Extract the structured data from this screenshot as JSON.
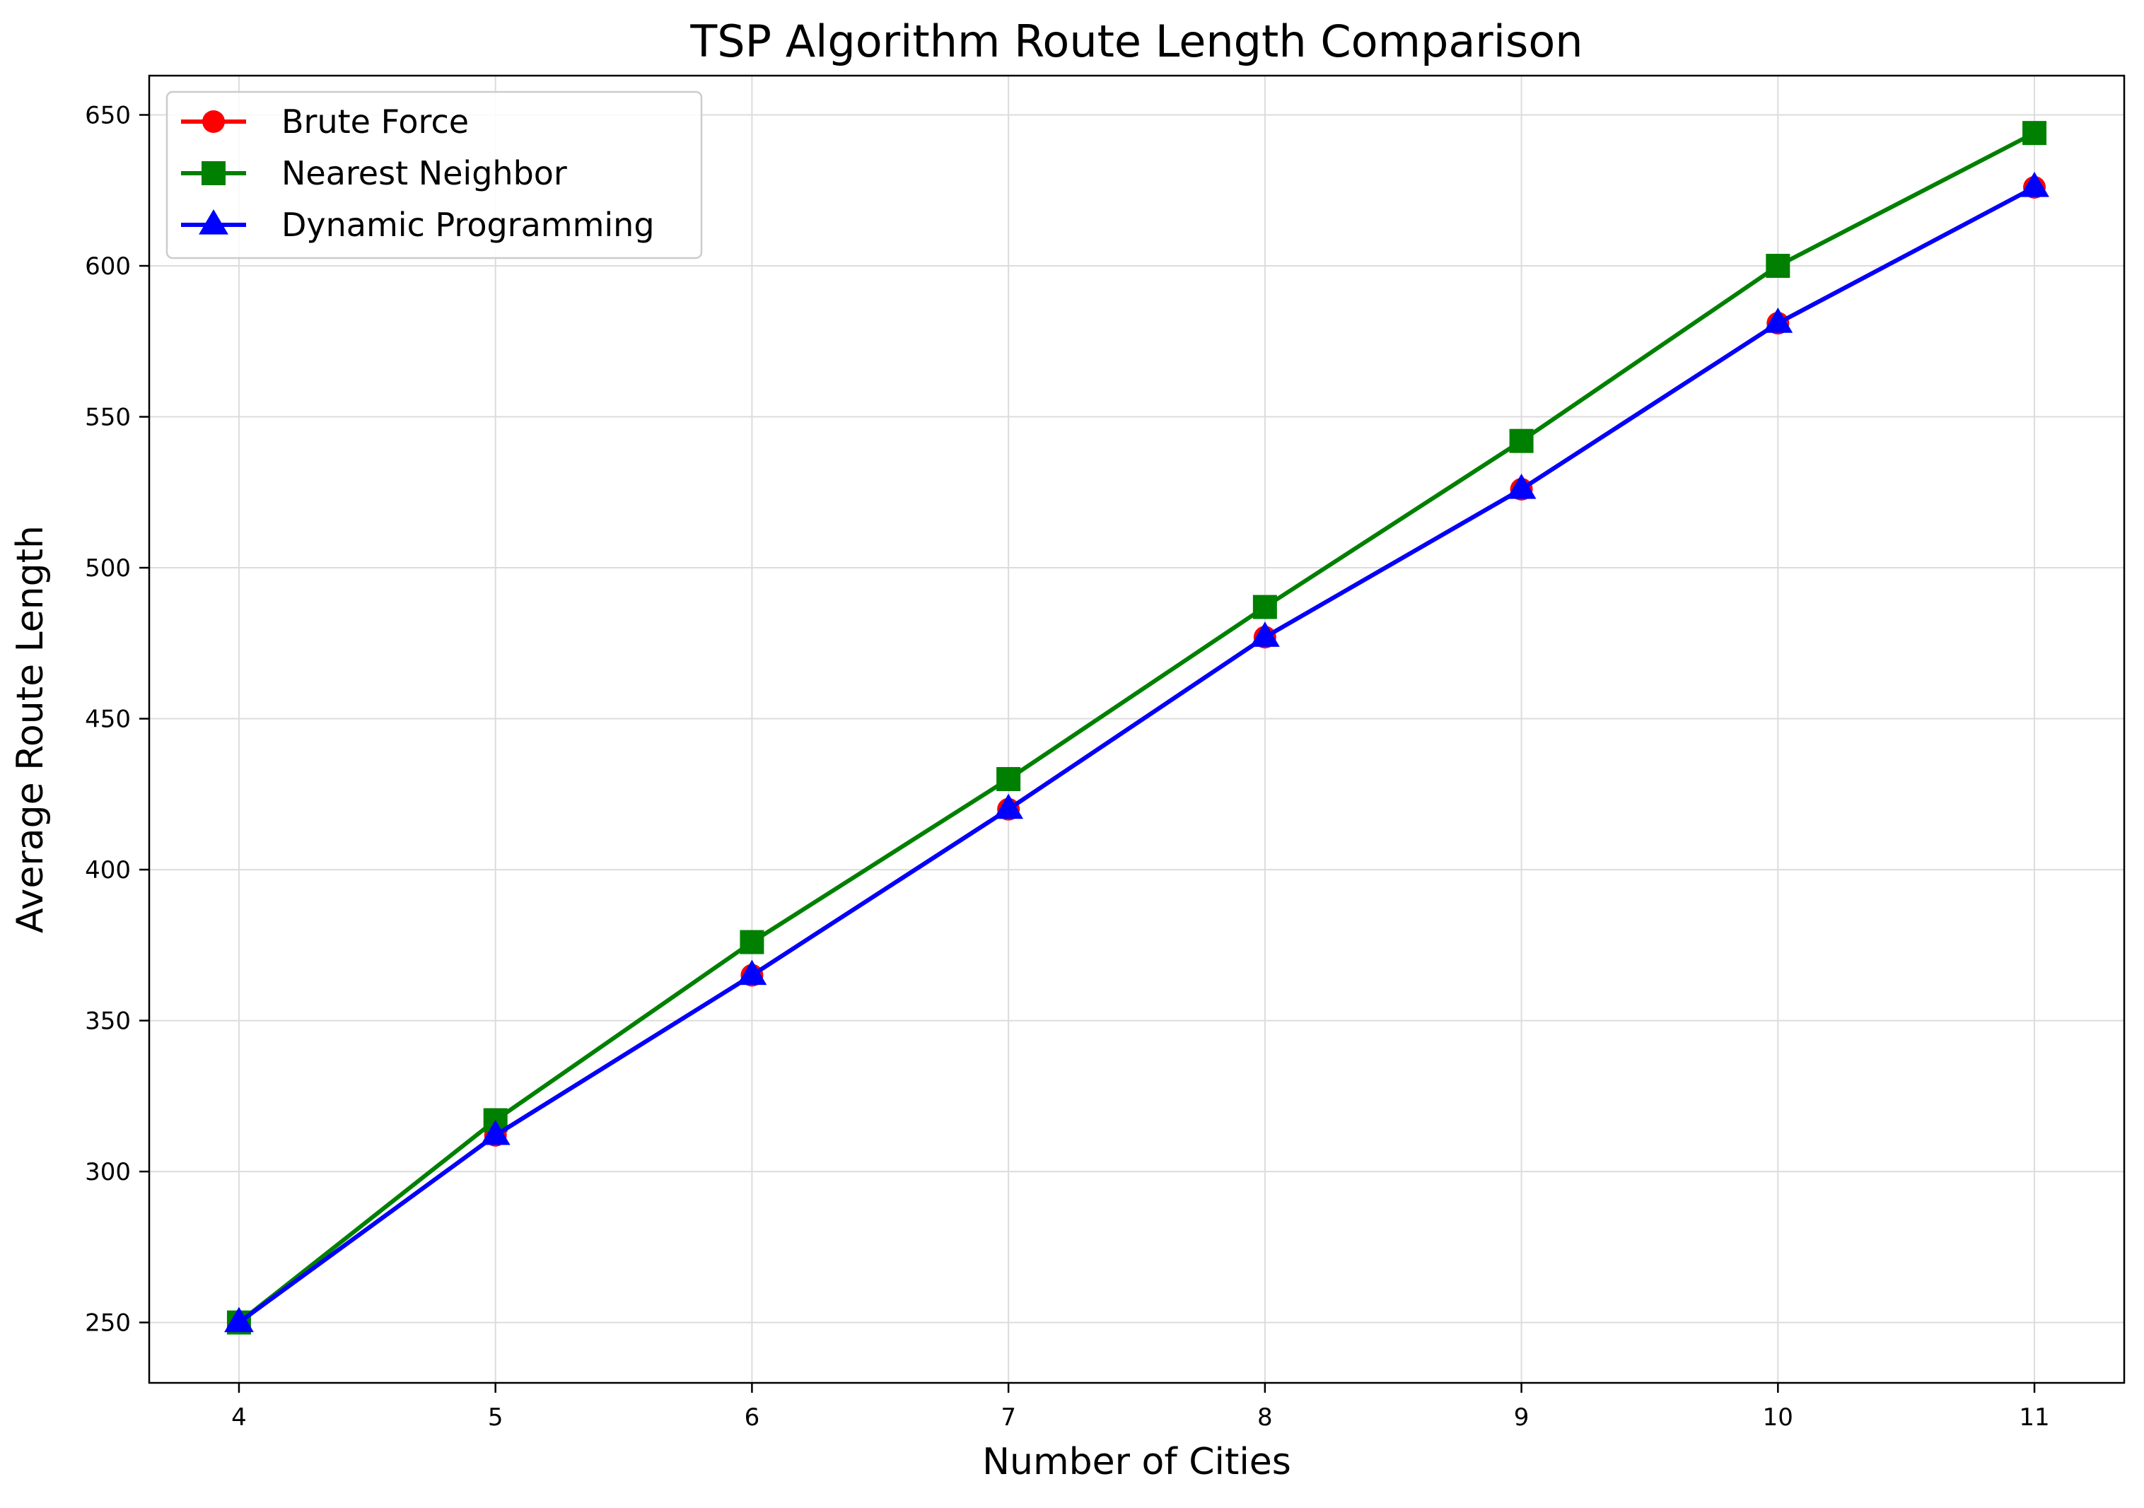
{
  "chart_data": {
    "type": "line",
    "title": "TSP Algorithm Route Length Comparison",
    "xlabel": "Number of Cities",
    "ylabel": "Average Route Length",
    "x": [
      4,
      5,
      6,
      7,
      8,
      9,
      10,
      11
    ],
    "xlim": [
      3.65,
      11.35
    ],
    "ylim": [
      230,
      663
    ],
    "xticks": [
      4,
      5,
      6,
      7,
      8,
      9,
      10,
      11
    ],
    "yticks": [
      250,
      300,
      350,
      400,
      450,
      500,
      550,
      600,
      650
    ],
    "grid": true,
    "legend_position": "top-left",
    "series": [
      {
        "name": "Brute Force",
        "color": "#ff0000",
        "marker": "circle",
        "values": [
          250,
          312,
          365,
          420,
          477,
          526,
          581,
          626
        ]
      },
      {
        "name": "Nearest Neighbor",
        "color": "#008000",
        "marker": "square",
        "values": [
          250,
          317,
          376,
          430,
          487,
          542,
          600,
          644
        ]
      },
      {
        "name": "Dynamic Programming",
        "color": "#0000ff",
        "marker": "triangle",
        "values": [
          250,
          312,
          365,
          420,
          477,
          526,
          581,
          626
        ]
      }
    ]
  }
}
